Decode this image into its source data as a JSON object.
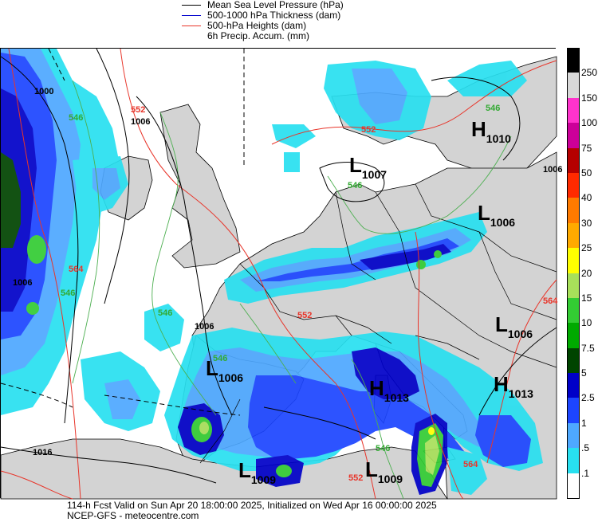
{
  "legend": {
    "items": [
      {
        "label": "Mean Sea Level Pressure (hPa)",
        "color": "#000000"
      },
      {
        "label": "500-1000 hPa Thickness (dam)",
        "color": "#0000cc"
      },
      {
        "label": "500-hPa Heights (dam)",
        "color": "#e8352a"
      },
      {
        "label": "6h Precip. Accum. (mm)",
        "color": ""
      }
    ]
  },
  "colorbar": {
    "labels": [
      "250",
      "150",
      "100",
      "75",
      "50",
      "40",
      "30",
      "25",
      "20",
      "15",
      "10",
      "7.5",
      "5",
      "2.5",
      "1",
      ".5",
      ".1"
    ],
    "colors": [
      "#000000",
      "#d8d8d8",
      "#ff33cc",
      "#cc0099",
      "#b50000",
      "#ff2a00",
      "#ff7a00",
      "#ffaa00",
      "#ffff00",
      "#a8e05a",
      "#33cc33",
      "#00aa00",
      "#004400",
      "#0000c8",
      "#1c45ff",
      "#4ea8ff",
      "#28e0f0",
      "#ffffff"
    ]
  },
  "map": {
    "pressure_systems": [
      {
        "type": "H",
        "value": "1010"
      },
      {
        "type": "L",
        "value": "1007"
      },
      {
        "type": "L",
        "value": "1006"
      },
      {
        "type": "L",
        "value": "1006"
      },
      {
        "type": "L",
        "value": "1006"
      },
      {
        "type": "H",
        "value": "1013"
      },
      {
        "type": "H",
        "value": "1013"
      },
      {
        "type": "L",
        "value": "1009"
      },
      {
        "type": "L",
        "value": "1009"
      }
    ],
    "contour_labels": {
      "msl": [
        "1000",
        "1006",
        "1006",
        "1006",
        "1006",
        "1016"
      ],
      "heights": [
        "552",
        "552",
        "552",
        "552",
        "564",
        "564",
        "564"
      ],
      "thickness": [
        "546",
        "546",
        "546",
        "546",
        "546",
        "546",
        "546"
      ]
    }
  },
  "footer": {
    "line1": "114-h Fcst Valid on Sun Apr 20 18:00:00 2025, Initialized on Wed Apr 16 00:00:00 2025",
    "line2": "NCEP-GFS  -  meteocentre.com"
  }
}
